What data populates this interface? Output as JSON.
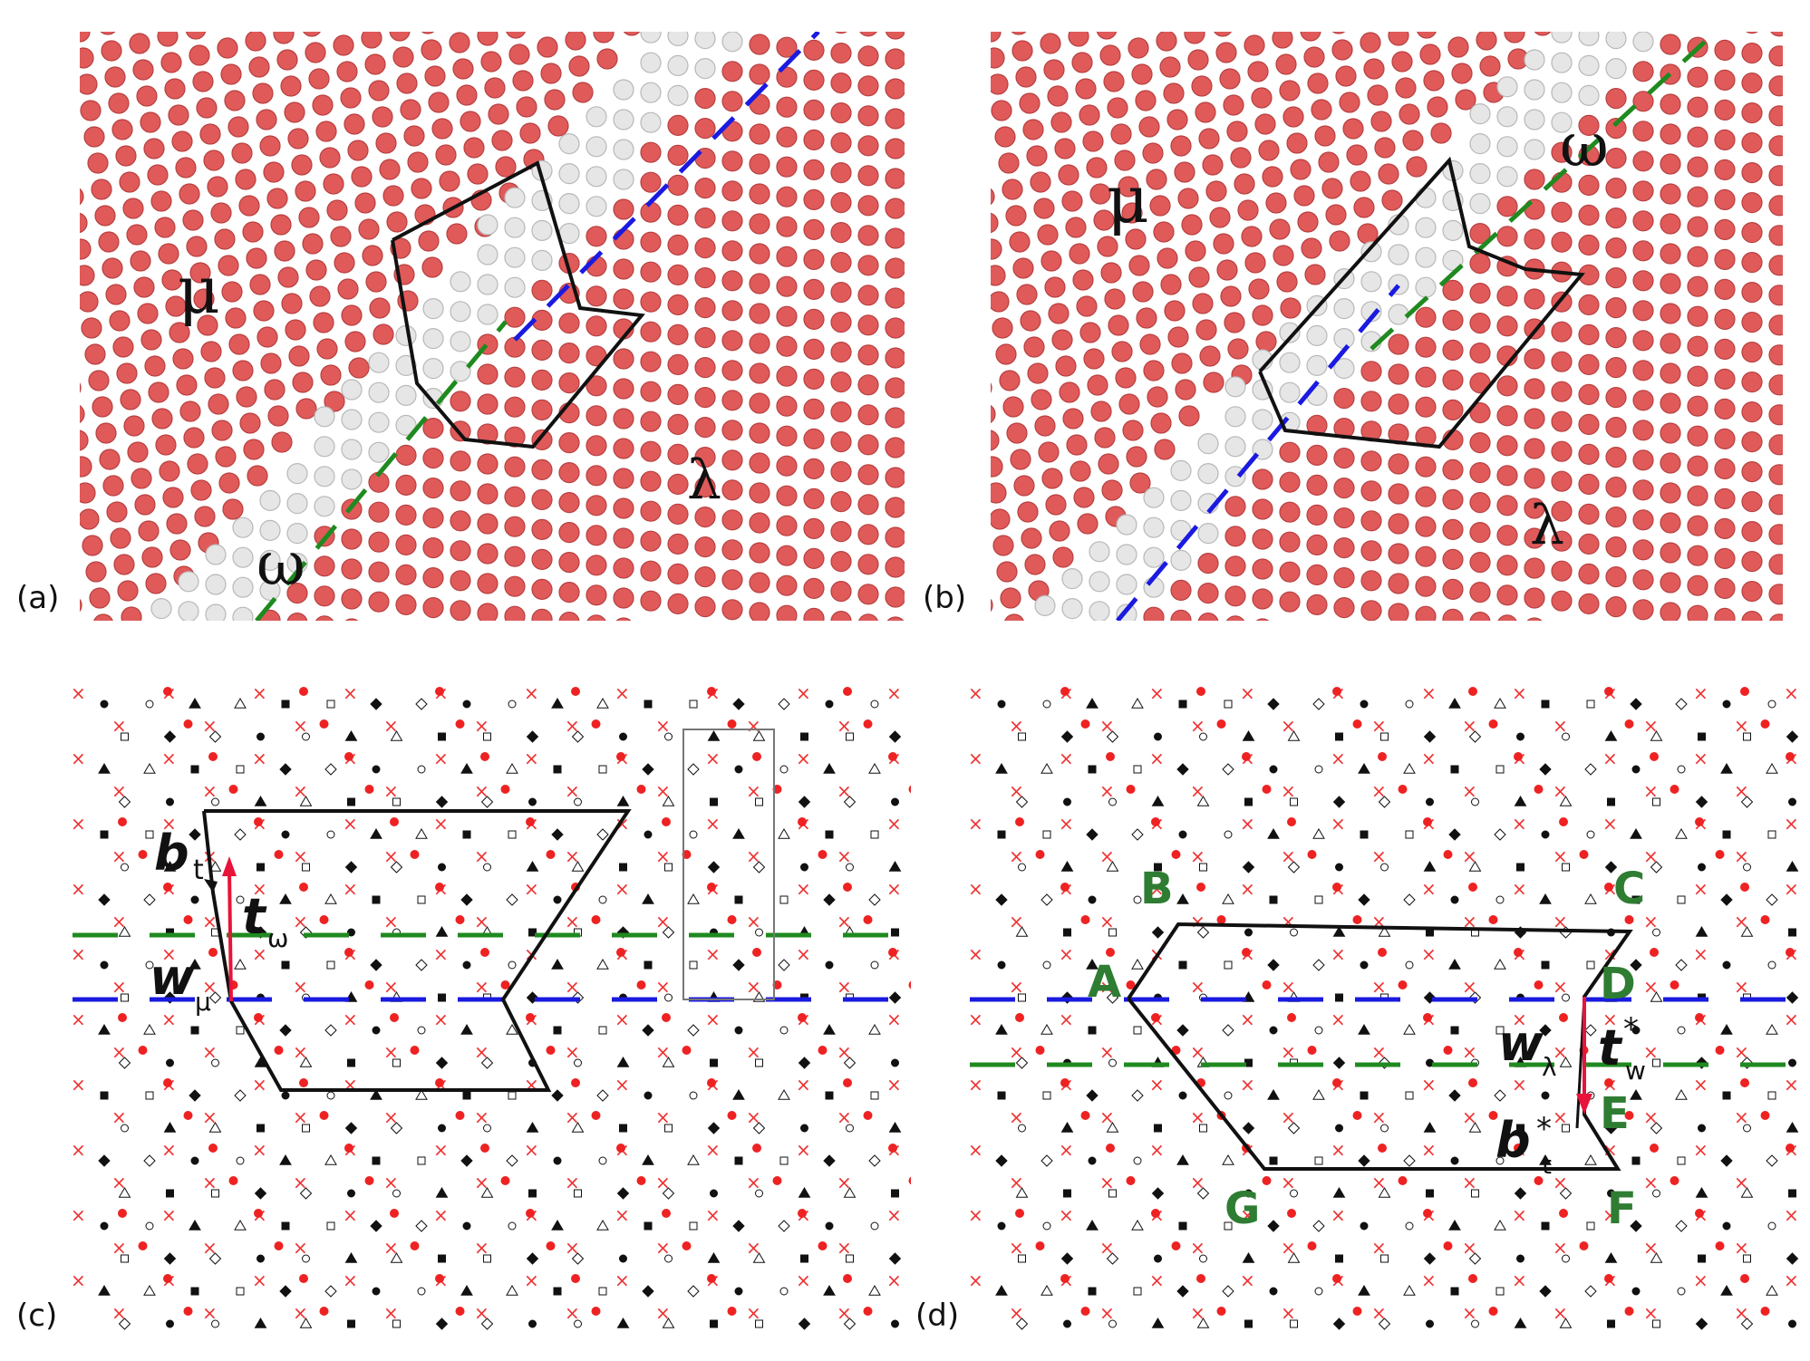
{
  "panels": {
    "a": {
      "label": "(a)",
      "phases": {
        "mu": "μ",
        "lambda": "λ",
        "omega": "ω"
      }
    },
    "b": {
      "label": "(b)",
      "phases": {
        "mu": "μ",
        "lambda": "λ",
        "omega": "ω"
      }
    },
    "c": {
      "label": "(c)",
      "vectors": {
        "bt": {
          "main": "b",
          "sub": "t"
        },
        "tw": {
          "main": "t",
          "sub": "ω"
        },
        "wm": {
          "main": "w",
          "sub": "μ"
        }
      }
    },
    "d": {
      "label": "(d)",
      "points": [
        "A",
        "B",
        "C",
        "D",
        "E",
        "F",
        "G"
      ],
      "vectors": {
        "wl": {
          "main": "w",
          "sub": "λ"
        },
        "tw": {
          "main": "t",
          "sup": "*",
          "sub": "w"
        },
        "bt": {
          "main": "b",
          "sup": "*",
          "sub": "t"
        }
      }
    }
  },
  "colors": {
    "atom_red": "#e05a5a",
    "atom_grey": "#e6e6e6",
    "circuit": "#111111",
    "green_line": "#1f8a1f",
    "blue_line": "#1a1ae0",
    "burgers_arrow": "#e8133a",
    "point_label": "#2e7d32"
  }
}
